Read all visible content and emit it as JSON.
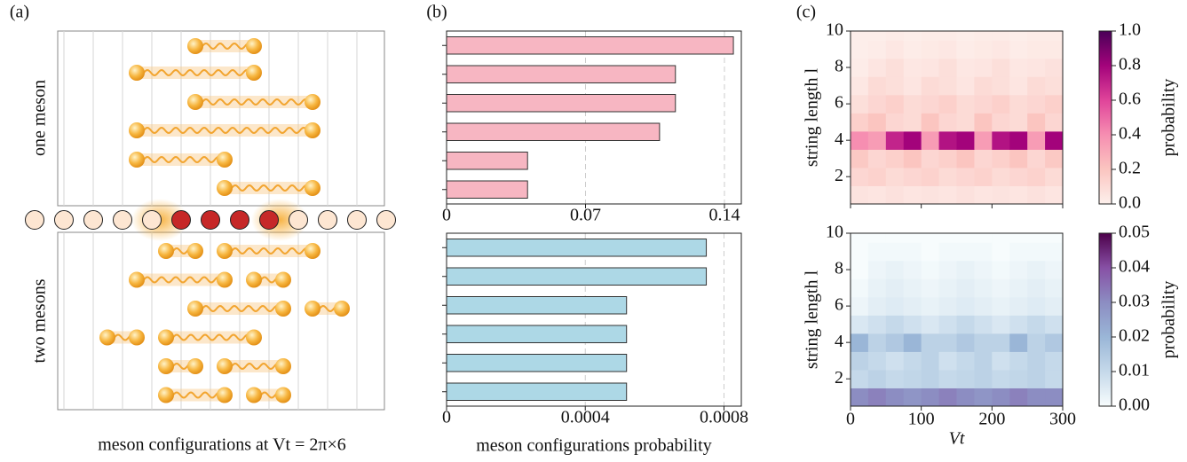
{
  "labels": {
    "a": "(a)",
    "b": "(b)",
    "c": "(c)"
  },
  "diagram": {
    "top_label": "one meson",
    "bottom_label": "two mesons",
    "caption": "meson configurations at Vt = 2π×6"
  },
  "chart_data": [
    {
      "type": "hbar",
      "categories": [
        null,
        null,
        null,
        null,
        null,
        null
      ],
      "values": [
        0.1445,
        0.1153,
        0.1153,
        0.1073,
        0.0408,
        0.0408
      ],
      "color": "#f7b6c2",
      "xlim": [
        0,
        0.1485
      ],
      "xticks": [
        0,
        0.07,
        0.14
      ],
      "grid": true
    },
    {
      "type": "hbar",
      "categories": [
        null,
        null,
        null,
        null,
        null,
        null
      ],
      "values": [
        0.000749,
        0.000749,
        0.000519,
        0.000519,
        0.000519,
        0.000519
      ],
      "color": "#add8e6",
      "xlim": [
        0,
        0.00085
      ],
      "xticks": [
        0,
        0.0004,
        0.0008
      ],
      "grid": true,
      "xlabel": "meson configurations probability"
    },
    {
      "type": "heatmap",
      "x": [
        12.5,
        37.5,
        62.5,
        87.5,
        112.5,
        137.5,
        162.5,
        187.5,
        212.5,
        237.5,
        262.5,
        287.5
      ],
      "y": [
        1,
        2,
        3,
        4,
        5,
        6,
        7,
        8,
        9,
        10
      ],
      "z": [
        [
          0.06,
          0.05,
          0.07,
          0.05,
          0.06,
          0.05,
          0.07,
          0.05,
          0.06,
          0.05,
          0.07,
          0.05
        ],
        [
          0.12,
          0.14,
          0.1,
          0.12,
          0.14,
          0.1,
          0.12,
          0.14,
          0.1,
          0.12,
          0.14,
          0.1
        ],
        [
          0.18,
          0.12,
          0.15,
          0.2,
          0.12,
          0.15,
          0.2,
          0.12,
          0.15,
          0.2,
          0.12,
          0.18
        ],
        [
          0.4,
          0.35,
          0.7,
          0.8,
          0.35,
          0.75,
          0.8,
          0.35,
          0.75,
          0.8,
          0.35,
          0.8
        ],
        [
          0.15,
          0.2,
          0.12,
          0.1,
          0.2,
          0.12,
          0.1,
          0.2,
          0.12,
          0.1,
          0.2,
          0.12
        ],
        [
          0.08,
          0.12,
          0.15,
          0.1,
          0.12,
          0.15,
          0.1,
          0.12,
          0.15,
          0.1,
          0.12,
          0.15
        ],
        [
          0.04,
          0.1,
          0.08,
          0.05,
          0.1,
          0.08,
          0.05,
          0.1,
          0.08,
          0.05,
          0.1,
          0.08
        ],
        [
          0.02,
          0.05,
          0.08,
          0.04,
          0.05,
          0.08,
          0.04,
          0.05,
          0.08,
          0.04,
          0.05,
          0.07
        ],
        [
          0.01,
          0.02,
          0.04,
          0.02,
          0.03,
          0.04,
          0.02,
          0.03,
          0.04,
          0.02,
          0.03,
          0.03
        ],
        [
          0.01,
          0.01,
          0.02,
          0.01,
          0.02,
          0.02,
          0.01,
          0.02,
          0.02,
          0.01,
          0.02,
          0.02
        ]
      ],
      "xlim": [
        0,
        300
      ],
      "ylim": [
        0.5,
        10
      ],
      "xticks": [
        0,
        100,
        200,
        300
      ],
      "xticklabels": false,
      "yticks": [
        2,
        4,
        6,
        8,
        10
      ],
      "ylabel": "string length l",
      "colors": [
        "#fdf0ec",
        "#fbc5c0",
        "#f68eb1",
        "#e0449a",
        "#a3037b",
        "#4a0058"
      ],
      "zlim": [
        0,
        1
      ],
      "zticks": [
        {
          "value": 0,
          "label": "0.0"
        },
        0.2,
        0.4,
        0.6,
        0.8,
        {
          "value": 1,
          "label": "1.0"
        }
      ],
      "zlabel": "probability"
    },
    {
      "type": "heatmap",
      "x": [
        12.5,
        37.5,
        62.5,
        87.5,
        112.5,
        137.5,
        162.5,
        187.5,
        212.5,
        237.5,
        262.5,
        287.5
      ],
      "y": [
        1,
        2,
        3,
        4,
        5,
        6,
        7,
        8,
        9,
        10
      ],
      "z": [
        [
          0.03,
          0.032,
          0.03,
          0.028,
          0.03,
          0.032,
          0.03,
          0.028,
          0.03,
          0.032,
          0.03,
          0.03
        ],
        [
          0.01,
          0.012,
          0.01,
          0.011,
          0.012,
          0.01,
          0.011,
          0.012,
          0.01,
          0.011,
          0.012,
          0.01
        ],
        [
          0.012,
          0.01,
          0.008,
          0.01,
          0.012,
          0.008,
          0.01,
          0.012,
          0.008,
          0.01,
          0.012,
          0.01
        ],
        [
          0.02,
          0.012,
          0.015,
          0.02,
          0.012,
          0.012,
          0.015,
          0.012,
          0.012,
          0.02,
          0.012,
          0.015
        ],
        [
          0.006,
          0.008,
          0.01,
          0.008,
          0.006,
          0.008,
          0.01,
          0.008,
          0.006,
          0.008,
          0.01,
          0.008
        ],
        [
          0.002,
          0.004,
          0.005,
          0.004,
          0.003,
          0.004,
          0.005,
          0.004,
          0.003,
          0.004,
          0.005,
          0.004
        ],
        [
          0.001,
          0.003,
          0.004,
          0.003,
          0.002,
          0.003,
          0.004,
          0.003,
          0.002,
          0.003,
          0.004,
          0.003
        ],
        [
          0,
          0.002,
          0.003,
          0.002,
          0.001,
          0.002,
          0.003,
          0.002,
          0.001,
          0.002,
          0.003,
          0.002
        ],
        [
          0,
          0.001,
          0.001,
          0.001,
          0,
          0.001,
          0.001,
          0.001,
          0,
          0.001,
          0.001,
          0.001
        ],
        [
          0,
          0,
          0,
          0,
          0,
          0,
          0,
          0,
          0,
          0,
          0,
          0
        ]
      ],
      "xlim": [
        0,
        300
      ],
      "ylim": [
        0.5,
        10
      ],
      "xticks": [
        0,
        100,
        200,
        300
      ],
      "yticks": [
        2,
        4,
        6,
        8,
        10
      ],
      "xlabel": "Vt",
      "ylabel": "string length l",
      "colors": [
        "#f7fcfd",
        "#c5d9ea",
        "#9ab6d7",
        "#8c8dc2",
        "#8750a5",
        "#4d004b"
      ],
      "zlim": [
        0,
        0.05
      ],
      "zticks": [
        {
          "value": 0,
          "label": "0.00"
        },
        0.01,
        0.02,
        0.03,
        0.04,
        0.05
      ],
      "zlabel": "probability"
    }
  ]
}
